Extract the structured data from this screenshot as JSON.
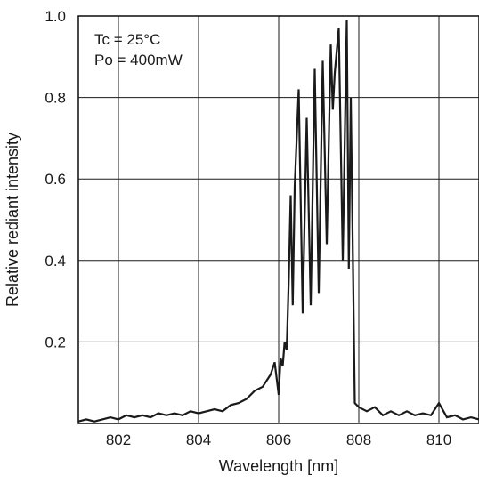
{
  "chart_data": {
    "type": "line",
    "xlabel": "Wavelength [nm]",
    "ylabel": "Relative rediant intensity",
    "xlim": [
      801,
      811
    ],
    "ylim": [
      0,
      1.0
    ],
    "x_ticks": [
      802,
      804,
      806,
      808,
      810
    ],
    "x_tick_labels": [
      "802",
      "804",
      "806",
      "808",
      "810"
    ],
    "y_ticks": [
      0.2,
      0.4,
      0.6,
      0.8,
      1.0
    ],
    "y_tick_labels": [
      "0.2",
      "0.4",
      "0.6",
      "0.8",
      "1.0"
    ],
    "grid": true,
    "annotations": [
      "Tc = 25°C",
      "Po = 400mW"
    ],
    "series": [
      {
        "x": [
          801.0,
          801.2,
          801.4,
          801.6,
          801.8,
          802.0,
          802.2,
          802.4,
          802.6,
          802.8,
          803.0,
          803.2,
          803.4,
          803.6,
          803.8,
          804.0,
          804.2,
          804.4,
          804.6,
          804.8,
          805.0,
          805.2,
          805.4,
          805.6,
          805.8,
          805.9,
          806.0,
          806.05,
          806.1,
          806.15,
          806.2,
          806.25,
          806.3,
          806.35,
          806.4,
          806.5,
          806.6,
          806.7,
          806.8,
          806.9,
          807.0,
          807.1,
          807.2,
          807.3,
          807.35,
          807.4,
          807.5,
          807.6,
          807.7,
          807.75,
          807.8,
          807.9,
          808.0,
          808.2,
          808.4,
          808.6,
          808.8,
          809.0,
          809.2,
          809.4,
          809.6,
          809.8,
          810.0,
          810.2,
          810.4,
          810.6,
          810.8,
          811.0
        ],
        "y": [
          0.005,
          0.01,
          0.005,
          0.01,
          0.015,
          0.01,
          0.02,
          0.015,
          0.02,
          0.015,
          0.025,
          0.02,
          0.025,
          0.02,
          0.03,
          0.025,
          0.03,
          0.035,
          0.03,
          0.045,
          0.05,
          0.06,
          0.08,
          0.09,
          0.12,
          0.15,
          0.07,
          0.16,
          0.14,
          0.2,
          0.18,
          0.35,
          0.56,
          0.29,
          0.58,
          0.82,
          0.27,
          0.75,
          0.29,
          0.87,
          0.32,
          0.89,
          0.44,
          0.93,
          0.77,
          0.86,
          0.97,
          0.4,
          0.99,
          0.38,
          0.8,
          0.05,
          0.04,
          0.03,
          0.04,
          0.02,
          0.03,
          0.02,
          0.03,
          0.02,
          0.025,
          0.02,
          0.05,
          0.015,
          0.02,
          0.01,
          0.015,
          0.01
        ]
      }
    ]
  }
}
